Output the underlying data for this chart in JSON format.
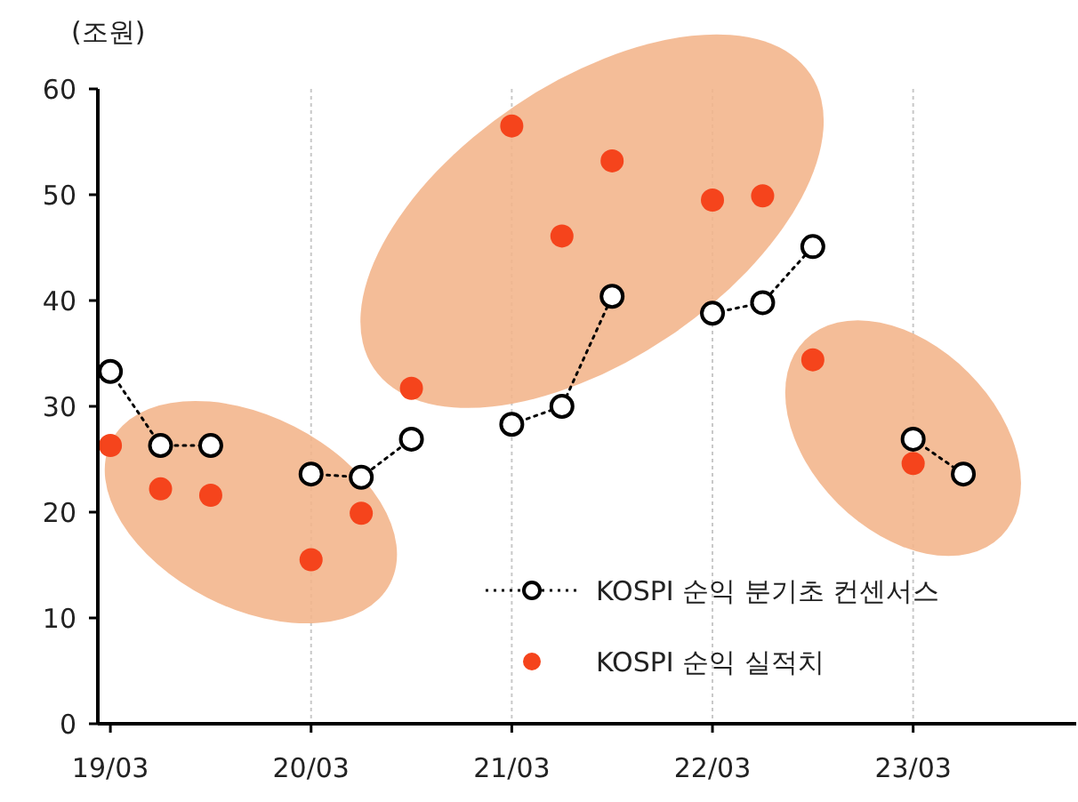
{
  "chart_data": {
    "type": "line",
    "ylabel": "(조원)",
    "categories": [
      "19/03",
      null,
      null,
      null,
      "20/03",
      null,
      null,
      null,
      "21/03",
      null,
      null,
      null,
      "22/03",
      null,
      null,
      null,
      "23/03",
      null,
      null,
      null
    ],
    "series": [
      {
        "name": "KOSPI 순익 분기초 컨센서스",
        "color": "#000000",
        "marker": "circle",
        "line_style": "dotted",
        "values": [
          33.3,
          26.3,
          26.3,
          null,
          23.6,
          23.3,
          26.9,
          null,
          28.3,
          30.0,
          40.4,
          null,
          38.8,
          39.8,
          45.1,
          null,
          26.9,
          23.6,
          null,
          null
        ]
      },
      {
        "name": "KOSPI 순익 실적치",
        "color": "#f5441c",
        "type": "scatter",
        "marker": "circle",
        "values": [
          26.3,
          22.2,
          21.6,
          null,
          15.5,
          19.9,
          31.7,
          null,
          56.5,
          46.1,
          53.2,
          null,
          49.5,
          49.9,
          34.4,
          null,
          24.6,
          null,
          null,
          null
        ]
      }
    ],
    "ylim": [
      0,
      60
    ],
    "yticks": [
      0,
      10,
      20,
      30,
      40,
      50,
      60
    ],
    "grid": "x",
    "legend": "bottom right"
  }
}
